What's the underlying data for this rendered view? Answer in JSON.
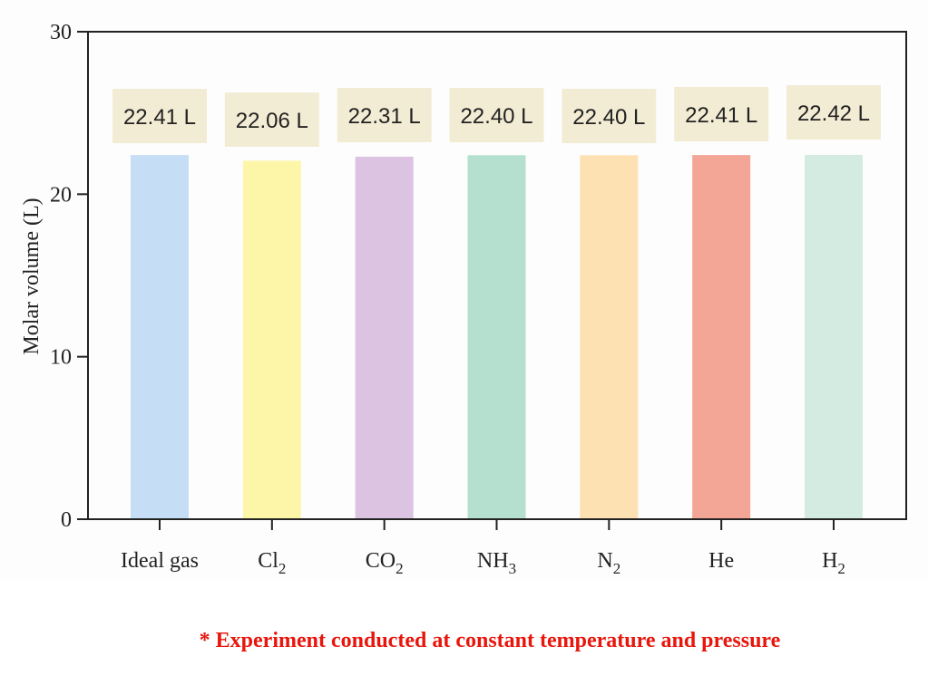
{
  "chart_data": {
    "type": "bar",
    "categories": [
      {
        "base": "Ideal gas",
        "sub": ""
      },
      {
        "base": "Cl",
        "sub": "2"
      },
      {
        "base": "CO",
        "sub": "2"
      },
      {
        "base": "NH",
        "sub": "3"
      },
      {
        "base": "N",
        "sub": "2"
      },
      {
        "base": "He",
        "sub": ""
      },
      {
        "base": "H",
        "sub": "2"
      }
    ],
    "values": [
      22.41,
      22.06,
      22.31,
      22.4,
      22.4,
      22.41,
      22.42
    ],
    "value_labels": [
      "22.41 L",
      "22.06 L",
      "22.31 L",
      "22.40 L",
      "22.40 L",
      "22.41 L",
      "22.42 L"
    ],
    "colors": [
      "#c5def5",
      "#fdf6a8",
      "#dcc3e2",
      "#b5dfcf",
      "#fde1b3",
      "#f3a596",
      "#d4ebe2"
    ],
    "label_box_color": "#f3ecd4",
    "ylabel": "Molar volume (L)",
    "xlabel": "",
    "ylim": [
      0,
      30
    ],
    "yticks": [
      0,
      10,
      20,
      30
    ],
    "grid": false,
    "legend": "none"
  },
  "footnote": "* Experiment conducted at constant temperature and pressure"
}
